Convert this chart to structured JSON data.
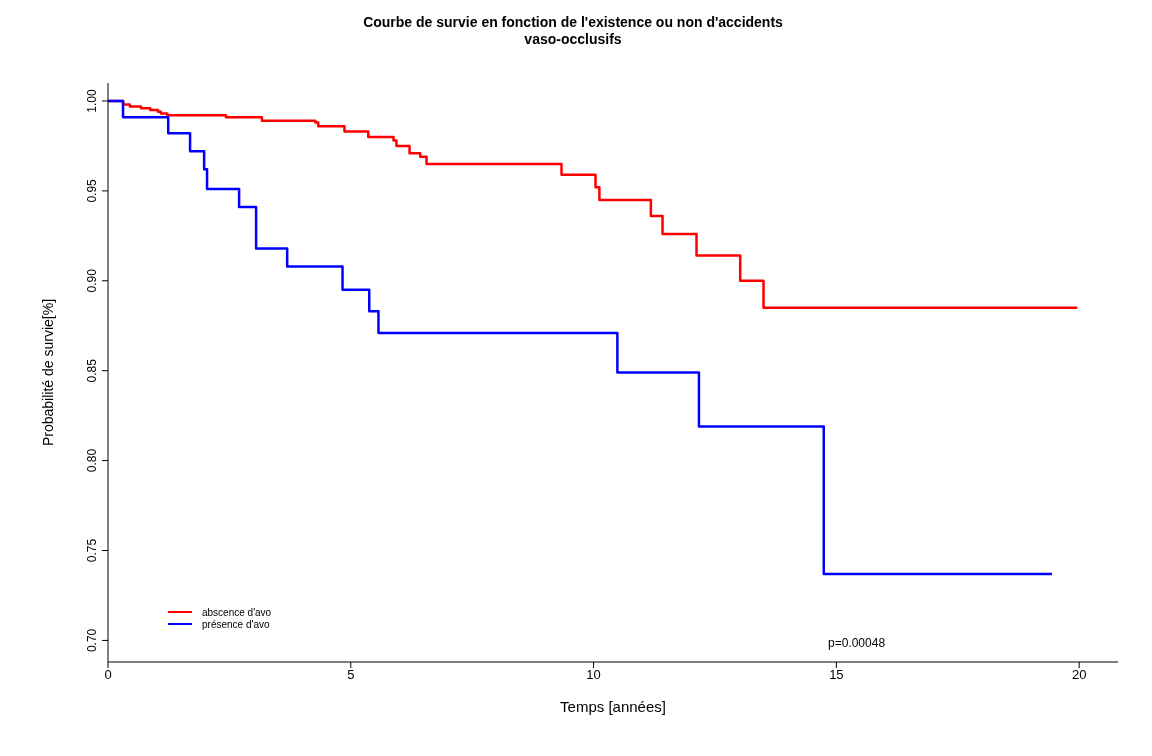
{
  "chart_data": {
    "type": "step",
    "title": "Courbe de survie en fonction de l'existence ou non d'accidents\nvaso-occlusifs",
    "xlabel": "Temps [années]",
    "ylabel": "Probabilité de survie[%]",
    "series": [
      {
        "name": "abscence d'avo",
        "color": "#ff0000",
        "x": [
          0,
          0.31,
          0.45,
          0.68,
          0.87,
          1.03,
          1.09,
          1.22,
          2.43,
          3.17,
          4.27,
          4.33,
          4.87,
          5.36,
          5.88,
          5.94,
          6.21,
          6.43,
          6.56,
          9.34,
          10.04,
          10.12,
          11.18,
          11.42,
          12.12,
          13.02,
          13.5,
          19.96
        ],
        "values": [
          1.0,
          0.998,
          0.997,
          0.996,
          0.995,
          0.994,
          0.993,
          0.992,
          0.991,
          0.989,
          0.988,
          0.986,
          0.983,
          0.98,
          0.978,
          0.975,
          0.971,
          0.969,
          0.965,
          0.959,
          0.952,
          0.945,
          0.936,
          0.926,
          0.914,
          0.9,
          0.885,
          0.885
        ]
      },
      {
        "name": "présence d'avo",
        "color": "#0000ff",
        "x": [
          0,
          0.31,
          1.24,
          1.69,
          1.98,
          2.04,
          2.7,
          3.05,
          3.69,
          4.83,
          5.38,
          5.57,
          10.49,
          12.17,
          14.74,
          19.44
        ],
        "values": [
          1.0,
          0.991,
          0.982,
          0.972,
          0.962,
          0.951,
          0.941,
          0.918,
          0.908,
          0.895,
          0.883,
          0.871,
          0.849,
          0.819,
          0.737,
          0.737
        ]
      }
    ],
    "xlim": [
      0,
      20.8
    ],
    "xticks": [
      0,
      5,
      10,
      15,
      20
    ],
    "ylim": [
      0.688,
      1.01
    ],
    "yticks": [
      {
        "value": 0.7,
        "label": "0.70"
      },
      {
        "value": 0.75,
        "label": "0.75"
      },
      {
        "value": 0.8,
        "label": "0.80"
      },
      {
        "value": 0.85,
        "label": "0.85"
      },
      {
        "value": 0.9,
        "label": "0.90"
      },
      {
        "value": 0.95,
        "label": "0.95"
      },
      {
        "value": 1.0,
        "label": "1.00"
      }
    ],
    "grid": false,
    "legend": "bottom left",
    "marker": "none",
    "line_style": "solid",
    "annotations": [
      "p=0.00048"
    ]
  }
}
